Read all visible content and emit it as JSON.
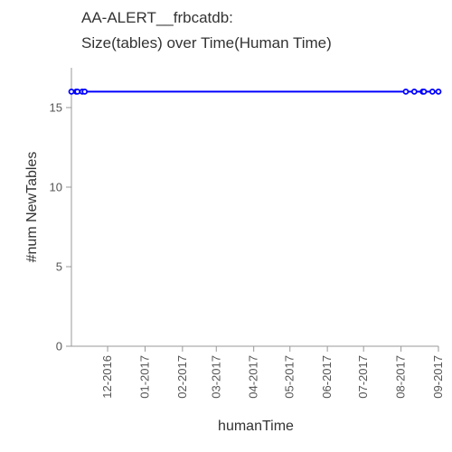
{
  "chart_data": {
    "type": "line",
    "title_line1": "AA-ALERT__frbcatdb:",
    "title_line2": "Size(tables) over Time(Human Time)",
    "xlabel": "humanTime",
    "ylabel": "#num NewTables",
    "ylim": [
      0,
      17.5
    ],
    "yticks": [
      0,
      5,
      10,
      15
    ],
    "xlim": [
      "2016-11-01",
      "2017-09-01"
    ],
    "xticks": [
      {
        "date": "2016-12-01",
        "label": "12-2016"
      },
      {
        "date": "2017-01-01",
        "label": "01-2017"
      },
      {
        "date": "2017-02-01",
        "label": "02-2017"
      },
      {
        "date": "2017-03-01",
        "label": "03-2017"
      },
      {
        "date": "2017-04-01",
        "label": "04-2017"
      },
      {
        "date": "2017-05-01",
        "label": "05-2017"
      },
      {
        "date": "2017-06-01",
        "label": "06-2017"
      },
      {
        "date": "2017-07-01",
        "label": "07-2017"
      },
      {
        "date": "2017-08-01",
        "label": "08-2017"
      },
      {
        "date": "2017-09-01",
        "label": "09-2017"
      }
    ],
    "grid": false,
    "series": [
      {
        "color": "#0000ff",
        "points": [
          {
            "x": "2016-11-01",
            "y": 16
          },
          {
            "x": "2016-11-05",
            "y": 16
          },
          {
            "x": "2016-11-06",
            "y": 16
          },
          {
            "x": "2016-11-10",
            "y": 16
          },
          {
            "x": "2016-11-12",
            "y": 16
          },
          {
            "x": "2017-08-05",
            "y": 16
          },
          {
            "x": "2017-08-12",
            "y": 16
          },
          {
            "x": "2017-08-19",
            "y": 16
          },
          {
            "x": "2017-08-20",
            "y": 16
          },
          {
            "x": "2017-08-27",
            "y": 16
          },
          {
            "x": "2017-09-01",
            "y": 16
          }
        ]
      }
    ]
  }
}
